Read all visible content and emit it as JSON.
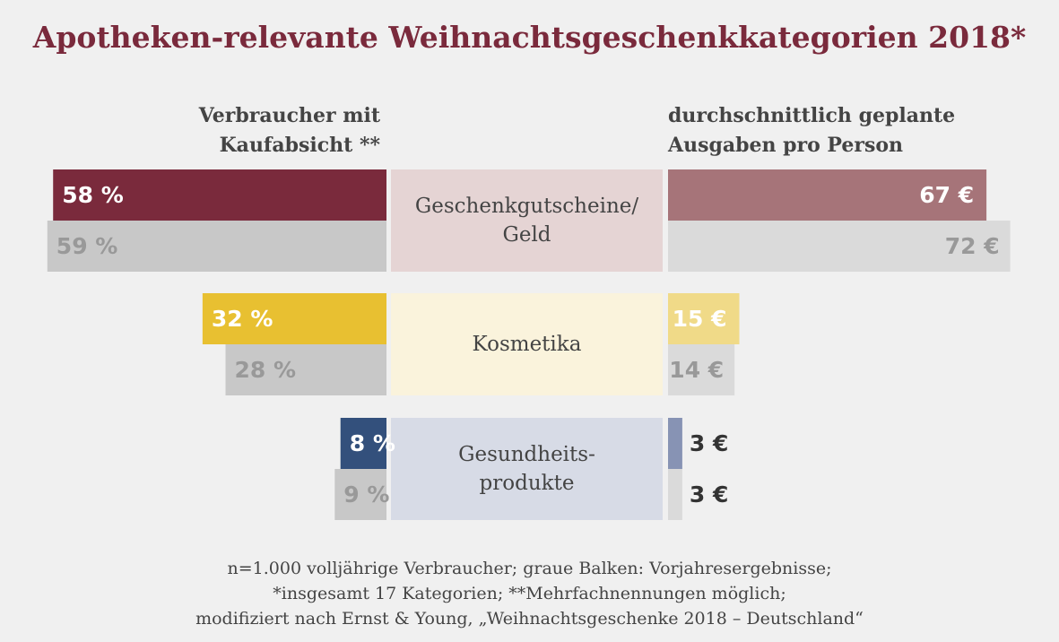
{
  "title": "Apotheken-relevante Weihnachtsgeschenkkategorien 2018*",
  "headers": {
    "left": [
      "Verbraucher mit",
      "Kaufabsicht **"
    ],
    "right": [
      "durchschnittlich geplante",
      "Ausgaben pro Person"
    ]
  },
  "chart_data": {
    "type": "bar",
    "categories": [
      [
        "Geschenkgutscheine/",
        "Geld"
      ],
      [
        "Kosmetika"
      ],
      [
        "Gesundheits-",
        "produkte"
      ]
    ],
    "left_panel": {
      "title": [
        "Verbraucher mit",
        "Kaufabsicht **"
      ],
      "unit": "%",
      "series": [
        {
          "values": [
            58,
            32,
            8
          ],
          "labels": [
            "58 %",
            "32 %",
            "8 %"
          ]
        },
        {
          "values": [
            59,
            28,
            9
          ],
          "labels": [
            "59 %",
            "28 %",
            "9 %"
          ]
        }
      ]
    },
    "right_panel": {
      "title": [
        "durchschnittlich geplante",
        "Ausgaben pro Person"
      ],
      "unit": "€",
      "series": [
        {
          "values": [
            67,
            15,
            3
          ],
          "labels": [
            "67 €",
            "15 €",
            "3 €"
          ]
        },
        {
          "values": [
            72,
            14,
            3
          ],
          "labels": [
            "72 €",
            "14 €",
            "3 €"
          ]
        }
      ]
    },
    "colors": {
      "current_left": [
        "#7a2a3c",
        "#e8c031",
        "#33507c"
      ],
      "current_right": [
        "#a67479",
        "#f0da88",
        "#8793b4"
      ],
      "previous_left": "#c8c8c8",
      "previous_right": "#dadada",
      "category_bg": [
        "#e5d4d4",
        "#faf3dc",
        "#d7dbe6"
      ],
      "previous_label": "#999999",
      "title": "#7a2a3c"
    }
  },
  "footnote": [
    "n=1.000 volljährige Verbraucher; graue Balken: Vorjahresergebnisse;",
    "*insgesamt 17 Kategorien; **Mehrfachnennungen möglich;",
    "modifiziert nach Ernst & Young, „Weihnachtsgeschenke 2018 – Deutschland“"
  ]
}
